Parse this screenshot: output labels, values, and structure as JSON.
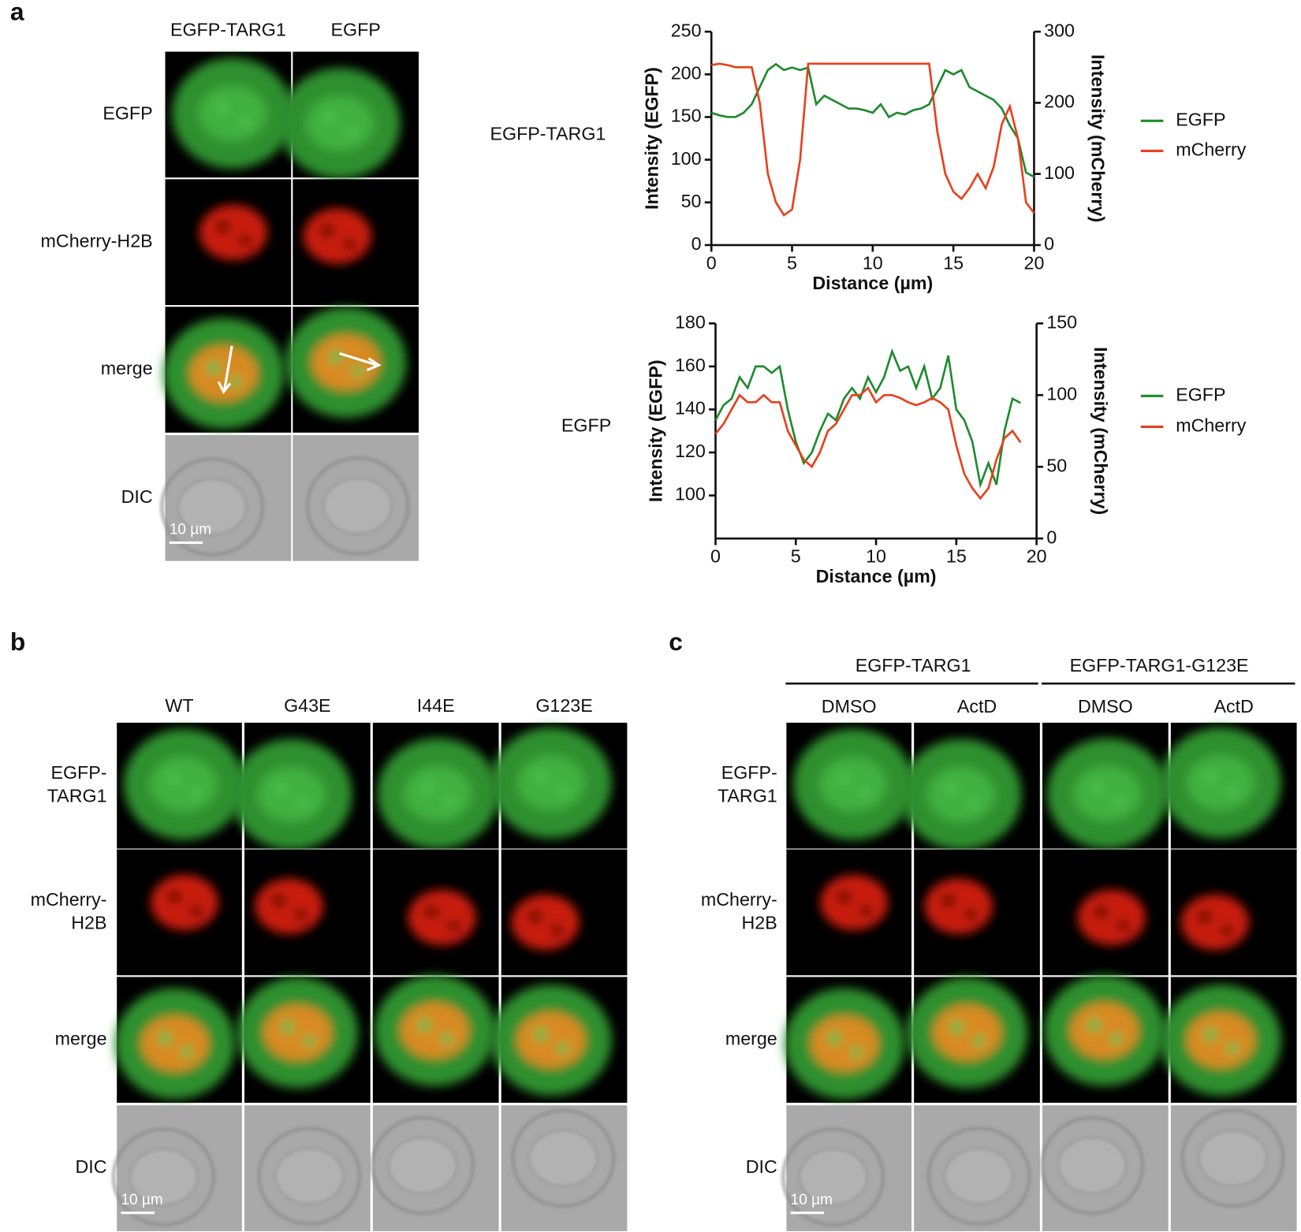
{
  "panels": {
    "a": {
      "label": "a",
      "columns": [
        "EGFP-TARG1",
        "EGFP"
      ],
      "rows": [
        [
          "EGFP"
        ],
        [
          "mCherry-H2B"
        ],
        [
          "merge"
        ],
        [
          "DIC"
        ]
      ],
      "scale_bar": "10 µm"
    },
    "b": {
      "label": "b",
      "columns": [
        "WT",
        "G43E",
        "I44E",
        "G123E"
      ],
      "rows": [
        [
          "EGFP-",
          "TARG1"
        ],
        [
          "mCherry-",
          "H2B"
        ],
        [
          "merge"
        ],
        [
          "DIC"
        ]
      ],
      "scale_bar": "10 µm"
    },
    "c": {
      "label": "c",
      "groups": [
        "EGFP-TARG1",
        "EGFP-TARG1-G123E"
      ],
      "columns": [
        "DMSO",
        "ActD",
        "DMSO",
        "ActD"
      ],
      "rows": [
        [
          "EGFP-",
          "TARG1"
        ],
        [
          "mCherry-",
          "H2B"
        ],
        [
          "merge"
        ],
        [
          "DIC"
        ]
      ],
      "scale_bar": "10 µm"
    }
  },
  "chart_data": [
    {
      "type": "line",
      "label": "EGFP-TARG1",
      "xlabel": "Distance (µm)",
      "ylabel": "Intensity (EGFP)",
      "y2label": "Intensity (mCherry)",
      "xlim": [
        0,
        20
      ],
      "xticks": [
        0,
        5,
        10,
        15,
        20
      ],
      "ylim": [
        0,
        250
      ],
      "yticks": [
        0,
        50,
        100,
        150,
        200,
        250
      ],
      "y2lim": [
        0,
        300
      ],
      "y2ticks": [
        0,
        100,
        200,
        300
      ],
      "x": [
        0,
        0.5,
        1,
        1.5,
        2,
        2.5,
        3,
        3.5,
        4,
        4.5,
        5,
        5.5,
        6,
        6.5,
        7,
        7.5,
        8,
        8.5,
        9,
        9.5,
        10,
        10.5,
        11,
        11.5,
        12,
        12.5,
        13,
        13.5,
        14,
        14.5,
        15,
        15.5,
        16,
        16.5,
        17,
        17.5,
        18,
        18.5,
        19,
        19.5,
        20
      ],
      "series": [
        {
          "name": "EGFP",
          "color": "#1e8a2e",
          "values": [
            155,
            152,
            150,
            150,
            155,
            165,
            185,
            205,
            212,
            205,
            208,
            205,
            208,
            165,
            175,
            170,
            165,
            160,
            160,
            158,
            155,
            165,
            150,
            155,
            153,
            158,
            160,
            165,
            185,
            205,
            200,
            205,
            185,
            180,
            175,
            170,
            160,
            140,
            125,
            85,
            80
          ]
        },
        {
          "name": "mCherry",
          "color": "#e8401c",
          "axis": "y2",
          "values": [
            253,
            255,
            253,
            250,
            250,
            250,
            200,
            100,
            60,
            42,
            50,
            120,
            255,
            255,
            255,
            255,
            255,
            255,
            255,
            255,
            255,
            255,
            255,
            255,
            255,
            255,
            255,
            255,
            160,
            100,
            75,
            65,
            80,
            100,
            80,
            110,
            170,
            195,
            150,
            60,
            45
          ]
        }
      ]
    },
    {
      "type": "line",
      "label": "EGFP",
      "xlabel": "Distance (µm)",
      "ylabel": "Intensity (EGFP)",
      "y2label": "Intensity (mCherry)",
      "xlim": [
        0,
        20
      ],
      "xticks": [
        0,
        5,
        10,
        15,
        20
      ],
      "ylim": [
        80,
        180
      ],
      "yticks": [
        100,
        120,
        140,
        160,
        180
      ],
      "y2lim": [
        0,
        150
      ],
      "y2ticks": [
        0,
        50,
        100,
        150
      ],
      "x": [
        0,
        0.5,
        1,
        1.5,
        2,
        2.5,
        3,
        3.5,
        4,
        4.5,
        5,
        5.5,
        6,
        6.5,
        7,
        7.5,
        8,
        8.5,
        9,
        9.5,
        10,
        10.5,
        11,
        11.5,
        12,
        12.5,
        13,
        13.5,
        14,
        14.5,
        15,
        15.5,
        16,
        16.5,
        17,
        17.5,
        18,
        18.5,
        19
      ],
      "series": [
        {
          "name": "EGFP",
          "color": "#1e8a2e",
          "values": [
            135,
            142,
            145,
            155,
            150,
            160,
            160,
            157,
            160,
            140,
            125,
            115,
            120,
            130,
            138,
            135,
            145,
            150,
            145,
            155,
            148,
            155,
            167,
            158,
            160,
            150,
            160,
            145,
            150,
            165,
            140,
            135,
            125,
            105,
            115,
            105,
            130,
            145,
            143
          ]
        },
        {
          "name": "mCherry",
          "color": "#e8401c",
          "axis": "y2",
          "values": [
            73,
            80,
            90,
            100,
            95,
            95,
            100,
            95,
            95,
            75,
            65,
            55,
            50,
            60,
            75,
            80,
            90,
            100,
            100,
            105,
            95,
            100,
            100,
            98,
            95,
            93,
            95,
            98,
            95,
            90,
            65,
            45,
            35,
            28,
            35,
            55,
            70,
            75,
            67
          ]
        }
      ]
    }
  ]
}
